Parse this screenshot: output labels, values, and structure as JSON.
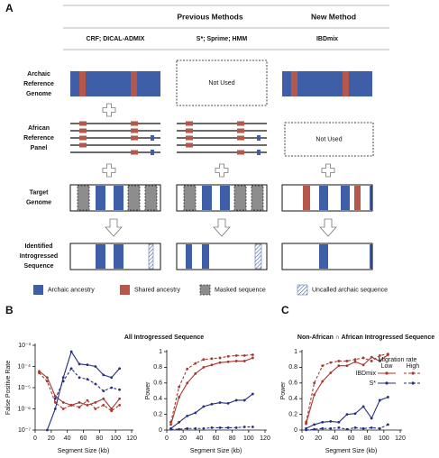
{
  "panel_labels": [
    "A",
    "B",
    "C"
  ],
  "panel_a": {
    "headers": [
      "Previous Methods",
      "New Method"
    ],
    "methods": [
      "CRF; DICAL-ADMIX",
      "S*; Sprime; HMM",
      "IBDmix"
    ],
    "rows": [
      [
        "Archaic",
        "Reference",
        "Genome"
      ],
      [
        "African",
        "Reference",
        "Panel"
      ],
      [
        "Target",
        "Genome"
      ],
      [
        "Identified",
        "Introgressed",
        "Sequence"
      ]
    ],
    "not_used": [
      "Not Used",
      "Not Used"
    ],
    "legend": [
      "Archaic ancestry",
      "Shared ancestry",
      "Masked sequence",
      "Uncalled archaic sequence"
    ]
  },
  "chart_data": [
    {
      "type": "line",
      "title": "All Introgressed Sequence",
      "xlabel": "Segment Size (kb)",
      "ylabel": "False Positive Rate",
      "log_y": true,
      "xlim": [
        0,
        120
      ],
      "xticks": [
        0,
        20,
        40,
        60,
        80,
        100,
        120
      ],
      "ylim": [
        1e-07,
        0.001
      ],
      "yticks": [
        {
          "value": 1e-07,
          "label": "10⁻⁷"
        },
        {
          "value": 1e-06,
          "label": "10⁻⁶"
        },
        {
          "value": 1e-05,
          "label": "10⁻⁵"
        },
        {
          "value": 0.0001,
          "label": "10⁻⁴"
        },
        {
          "value": 0.001,
          "label": "10⁻³"
        }
      ],
      "x": [
        5,
        15,
        25,
        35,
        45,
        55,
        65,
        75,
        85,
        95,
        105
      ],
      "series": [
        {
          "color": "#a8382f",
          "dashed": false,
          "values": [
            6e-05,
            3e-05,
            4e-06,
            2e-06,
            1.5e-06,
            2e-06,
            1.5e-06,
            2e-06,
            3e-06,
            1e-06,
            3e-06
          ]
        },
        {
          "color": "#a8382f",
          "dashed": true,
          "values": [
            5e-05,
            2e-05,
            2e-06,
            1e-06,
            1.5e-06,
            1.2e-06,
            2.5e-06,
            1e-06,
            1.5e-06,
            8e-07,
            1.5e-06
          ]
        },
        {
          "color": "#252e80",
          "dashed": false,
          "values": [
            null,
            1e-07,
            1e-06,
            3e-05,
            0.0005,
            0.00013,
            0.00012,
            0.0001,
            4e-05,
            3e-05,
            8e-05
          ]
        },
        {
          "color": "#252e80",
          "dashed": true,
          "values": [
            null,
            null,
            3e-06,
            2e-05,
            8e-05,
            3e-05,
            2.5e-05,
            1.5e-05,
            7e-06,
            1e-05,
            8e-06
          ]
        }
      ]
    },
    {
      "type": "line",
      "xlabel": "Segment Size (kb)",
      "ylabel": "Power",
      "xlim": [
        0,
        120
      ],
      "xticks": [
        0,
        20,
        40,
        60,
        80,
        100,
        120
      ],
      "ylim": [
        0,
        1
      ],
      "yticks": [
        0,
        0.2,
        0.4,
        0.6,
        0.8,
        1
      ],
      "x": [
        5,
        15,
        25,
        35,
        45,
        55,
        65,
        75,
        85,
        95,
        105
      ],
      "series": [
        {
          "color": "#a8382f",
          "dashed": false,
          "values": [
            0.07,
            0.42,
            0.6,
            0.72,
            0.8,
            0.83,
            0.86,
            0.87,
            0.88,
            0.88,
            0.92
          ]
        },
        {
          "color": "#a8382f",
          "dashed": true,
          "values": [
            0.1,
            0.55,
            0.78,
            0.85,
            0.9,
            0.91,
            0.92,
            0.94,
            0.95,
            0.95,
            0.96
          ]
        },
        {
          "color": "#252e80",
          "dashed": false,
          "values": [
            0.02,
            0.1,
            0.18,
            0.22,
            0.3,
            0.33,
            0.35,
            0.34,
            0.38,
            0.38,
            0.46
          ]
        },
        {
          "color": "#252e80",
          "dashed": true,
          "values": [
            0.01,
            0.01,
            0.02,
            0.02,
            0.02,
            0.03,
            0.03,
            0.03,
            0.03,
            0.04,
            0.04
          ]
        }
      ]
    },
    {
      "type": "line",
      "title": "Non-African ∩ African Introgressed Sequence",
      "xlabel": "Segment Size (kb)",
      "ylabel": "Power",
      "xlim": [
        0,
        120
      ],
      "xticks": [
        0,
        20,
        40,
        60,
        80,
        100,
        120
      ],
      "ylim": [
        0,
        1
      ],
      "yticks": [
        0,
        0.2,
        0.4,
        0.6,
        0.8,
        1
      ],
      "x": [
        5,
        15,
        25,
        35,
        45,
        55,
        65,
        75,
        85,
        95,
        105
      ],
      "legend": {
        "title": "Migration rate",
        "columns": [
          "Low",
          "High"
        ],
        "rows": [
          "IBDmix",
          "S*"
        ]
      },
      "series": [
        {
          "color": "#a8382f",
          "dashed": false,
          "values": [
            0.08,
            0.45,
            0.62,
            0.73,
            0.82,
            0.82,
            0.87,
            0.83,
            0.93,
            0.88,
            0.96
          ]
        },
        {
          "color": "#a8382f",
          "dashed": true,
          "values": [
            0.1,
            0.6,
            0.82,
            0.86,
            0.88,
            0.88,
            0.9,
            0.92,
            0.88,
            0.95,
            0.97
          ]
        },
        {
          "color": "#252e80",
          "dashed": false,
          "values": [
            0.02,
            0.07,
            0.1,
            0.11,
            0.1,
            0.2,
            0.21,
            0.3,
            0.15,
            0.38,
            0.42
          ]
        },
        {
          "color": "#252e80",
          "dashed": true,
          "values": [
            0,
            0.01,
            0.02,
            0.02,
            0.03,
            0.01,
            0.03,
            0.02,
            0.03,
            0.02,
            0.07
          ]
        }
      ]
    }
  ]
}
